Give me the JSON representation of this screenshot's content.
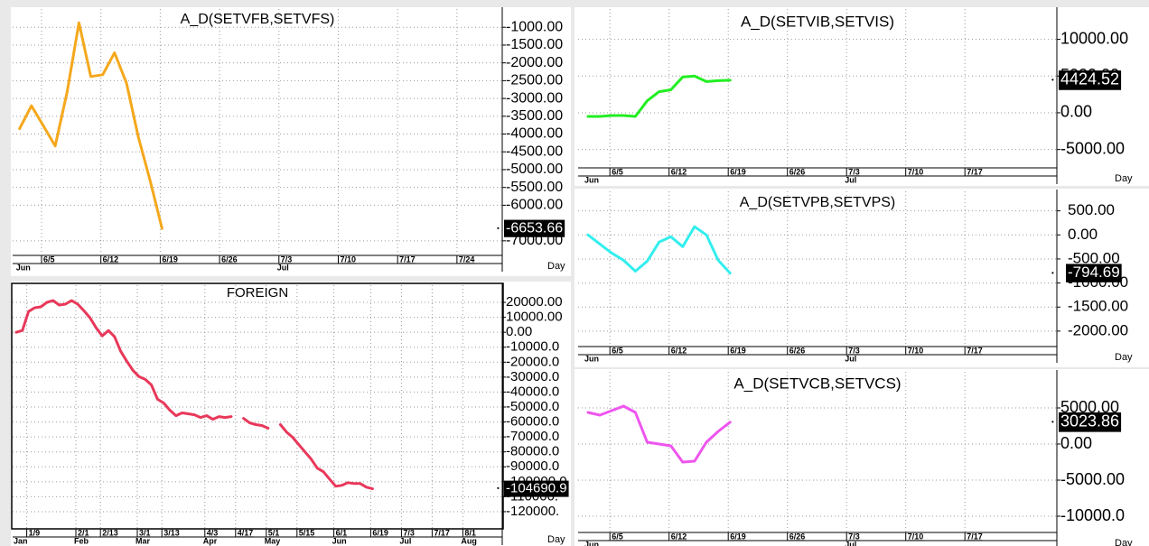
{
  "chart_data": [
    {
      "type": "line",
      "title": "A_D(SETVFB,SETVFS)",
      "x_label": "Day",
      "color": "#f5a81c",
      "grid": true,
      "categories": [
        null,
        null,
        "6/5",
        null,
        null,
        null,
        null,
        "6/12",
        null,
        null,
        null,
        null,
        "6/19",
        null,
        null,
        null,
        null,
        "6/26",
        null,
        null,
        null,
        null,
        "7/3",
        null,
        null,
        null,
        null,
        "7/10",
        null,
        null,
        null,
        null,
        "7/17",
        null,
        null,
        null,
        null,
        "7/24",
        null,
        null,
        null
      ],
      "months": [
        "Jun",
        null,
        null,
        null,
        null,
        null,
        null,
        null,
        null,
        null,
        null,
        null,
        null,
        null,
        null,
        null,
        null,
        null,
        null,
        null,
        null,
        null,
        "Jul",
        null,
        null,
        null,
        null,
        null,
        null,
        null,
        null,
        null,
        null,
        null,
        null,
        null,
        null,
        null,
        null,
        null,
        null
      ],
      "values": [
        -3846,
        -3205,
        -3769,
        -4333,
        -2820,
        -872,
        -2385,
        -2333,
        -1718,
        -2564,
        -4077,
        -5308,
        -6653.66,
        null,
        null,
        null,
        null,
        null,
        null,
        null,
        null,
        null,
        null,
        null,
        null,
        null,
        null,
        null,
        null,
        null,
        null,
        null,
        null,
        null,
        null,
        null,
        null,
        null,
        null,
        null,
        null
      ],
      "value_labels": [
        null,
        null,
        null,
        null,
        null,
        null,
        null,
        null,
        null,
        null,
        null,
        null,
        "-6653.66",
        null,
        null,
        null,
        null,
        null,
        null,
        null,
        null,
        null,
        null,
        null,
        null,
        null,
        null,
        null,
        null,
        null,
        null,
        null,
        null,
        null,
        null,
        null,
        null,
        null,
        null,
        null,
        null
      ],
      "ylim": [
        -7410,
        -487
      ],
      "yticks": [
        {
          "value": -1000,
          "label": "-1000.00"
        },
        {
          "value": -1500,
          "label": "-1500.00"
        },
        {
          "value": -2000,
          "label": "-2000.00"
        },
        {
          "value": -2500,
          "label": "-2500.00"
        },
        {
          "value": -3000,
          "label": "-3000.00"
        },
        {
          "value": -3500,
          "label": "-3500.00"
        },
        {
          "value": -4000,
          "label": "-4000.00"
        },
        {
          "value": -4500,
          "label": "-4500.00"
        },
        {
          "value": -5000,
          "label": "-5000.00"
        },
        {
          "value": -5500,
          "label": "-5500.00"
        },
        {
          "value": -6000,
          "label": "-6000.00"
        },
        {
          "value": -7000,
          "label": "-7000.00"
        }
      ]
    },
    {
      "type": "line",
      "title": "FOREIGN",
      "x_label": "Day",
      "color": "#e8385a",
      "grid": true,
      "categories": [
        null,
        null,
        "1/9",
        null,
        null,
        null,
        null,
        null,
        null,
        null,
        "2/1",
        null,
        null,
        null,
        "2/13",
        null,
        null,
        null,
        null,
        null,
        "3/1",
        null,
        null,
        null,
        "3/13",
        null,
        null,
        null,
        null,
        null,
        null,
        "4/3",
        null,
        null,
        null,
        null,
        "4/17",
        null,
        null,
        null,
        null,
        "5/1",
        null,
        null,
        null,
        null,
        "5/15",
        null,
        null,
        null,
        null,
        null,
        "6/1",
        null,
        null,
        null,
        null,
        null,
        "6/19",
        null,
        null,
        null,
        null,
        "7/3",
        null,
        null,
        null,
        null,
        "7/17",
        null,
        null,
        null,
        null,
        "8/1",
        null,
        null,
        null,
        null,
        null,
        null
      ],
      "months": [
        "Jan",
        null,
        null,
        null,
        null,
        null,
        null,
        null,
        null,
        null,
        "Feb",
        null,
        null,
        null,
        null,
        null,
        null,
        null,
        null,
        null,
        "Mar",
        null,
        null,
        null,
        null,
        null,
        null,
        null,
        null,
        null,
        null,
        "Apr",
        null,
        null,
        null,
        null,
        null,
        null,
        null,
        null,
        null,
        "May",
        null,
        null,
        null,
        null,
        null,
        null,
        null,
        null,
        null,
        null,
        "Jun",
        null,
        null,
        null,
        null,
        null,
        null,
        null,
        null,
        null,
        null,
        "Jul",
        null,
        null,
        null,
        null,
        null,
        null,
        null,
        null,
        null,
        "Aug",
        null,
        null,
        null,
        null,
        null,
        null
      ],
      "values": [
        0,
        1200,
        13900,
        16400,
        17000,
        20000,
        21200,
        18200,
        18800,
        21200,
        18800,
        14500,
        9700,
        3000,
        -2400,
        1200,
        -3000,
        -12700,
        -19400,
        -25500,
        -29700,
        -31500,
        -35200,
        -44800,
        -47300,
        -52100,
        -55800,
        -53900,
        -54500,
        -55200,
        -57000,
        -55800,
        -58200,
        -56400,
        -57000,
        -56400,
        null,
        -57600,
        -60600,
        -61800,
        -62400,
        -64200,
        null,
        -61800,
        -66700,
        -70300,
        -75200,
        -80000,
        -84800,
        -90900,
        -93300,
        -98200,
        -103000,
        -102400,
        -100600,
        -101200,
        -101200,
        -103600,
        -104690.9,
        null,
        null,
        null,
        null,
        null,
        null,
        null,
        null,
        null,
        null,
        null,
        null,
        null,
        null,
        null,
        null,
        null,
        null,
        null,
        null,
        null
      ],
      "value_labels": [
        null,
        null,
        null,
        null,
        null,
        null,
        null,
        null,
        null,
        null,
        null,
        null,
        null,
        null,
        null,
        null,
        null,
        null,
        null,
        null,
        null,
        null,
        null,
        null,
        null,
        null,
        null,
        null,
        null,
        null,
        null,
        null,
        null,
        null,
        null,
        null,
        null,
        null,
        null,
        null,
        null,
        null,
        null,
        null,
        null,
        null,
        null,
        null,
        null,
        null,
        null,
        null,
        null,
        null,
        null,
        null,
        null,
        null,
        "-104690.9",
        null,
        null,
        null,
        null,
        null,
        null,
        null,
        null,
        null,
        null,
        null,
        null,
        null,
        null,
        null,
        null,
        null,
        null,
        null,
        null,
        null
      ],
      "ylim": [
        -131500,
        31500
      ],
      "yticks": [
        {
          "value": 20000,
          "label": "20000.00"
        },
        {
          "value": 10000,
          "label": "10000.00"
        },
        {
          "value": 0,
          "label": "0.00"
        },
        {
          "value": -10000,
          "label": "-10000.0"
        },
        {
          "value": -20000,
          "label": "-20000.0"
        },
        {
          "value": -30000,
          "label": "-30000.0"
        },
        {
          "value": -40000,
          "label": "-40000.0"
        },
        {
          "value": -50000,
          "label": "-50000.0"
        },
        {
          "value": -60000,
          "label": "-60000.0"
        },
        {
          "value": -70000,
          "label": "-70000.0"
        },
        {
          "value": -80000,
          "label": "-80000.0"
        },
        {
          "value": -90000,
          "label": "-90000.0"
        },
        {
          "value": -100000,
          "label": "-100000.0"
        },
        {
          "value": -110000,
          "label": "-110000."
        },
        {
          "value": -120000,
          "label": "-120000."
        }
      ]
    },
    {
      "type": "line",
      "title": "A_D(SETVIB,SETVIS)",
      "x_label": "Day",
      "color": "#22ee22",
      "grid": true,
      "categories": [
        null,
        null,
        "6/5",
        null,
        null,
        null,
        null,
        "6/12",
        null,
        null,
        null,
        null,
        "6/19",
        null,
        null,
        null,
        null,
        "6/26",
        null,
        null,
        null,
        null,
        "7/3",
        null,
        null,
        null,
        null,
        "7/10",
        null,
        null,
        null,
        null,
        "7/17",
        null,
        null,
        null,
        null,
        null,
        null,
        null
      ],
      "months": [
        "Jun",
        null,
        null,
        null,
        null,
        null,
        null,
        null,
        null,
        null,
        null,
        null,
        null,
        null,
        null,
        null,
        null,
        null,
        null,
        null,
        null,
        null,
        "Jul",
        null,
        null,
        null,
        null,
        null,
        null,
        null,
        null,
        null,
        null,
        null,
        null,
        null,
        null,
        null,
        null,
        null
      ],
      "values": [
        -500,
        -500,
        -375,
        -375,
        -500,
        1625,
        2875,
        3125,
        4875,
        5000,
        4250,
        4375,
        4424.52,
        null,
        null,
        null,
        null,
        null,
        null,
        null,
        null,
        null,
        null,
        null,
        null,
        null,
        null,
        null,
        null,
        null,
        null,
        null,
        null,
        null,
        null,
        null,
        null,
        null,
        null,
        null
      ],
      "value_labels": [
        null,
        null,
        null,
        null,
        null,
        null,
        null,
        null,
        null,
        null,
        null,
        null,
        "4424.52",
        null,
        null,
        null,
        null,
        null,
        null,
        null,
        null,
        null,
        null,
        null,
        null,
        null,
        null,
        null,
        null,
        null,
        null,
        null,
        null,
        null,
        null,
        null,
        null,
        null,
        null,
        null
      ],
      "ylim": [
        -7500,
        14125
      ],
      "yticks": [
        {
          "value": 10000,
          "label": "10000.00"
        },
        {
          "value": 5000,
          "label": "5000.00"
        },
        {
          "value": 0,
          "label": "0.00"
        },
        {
          "value": -5000,
          "label": "-5000.00"
        }
      ]
    },
    {
      "type": "line",
      "title": "A_D(SETVPB,SETVPS)",
      "x_label": "Day",
      "color": "#33eeee",
      "grid": true,
      "categories": [
        null,
        null,
        "6/5",
        null,
        null,
        null,
        null,
        "6/12",
        null,
        null,
        null,
        null,
        "6/19",
        null,
        null,
        null,
        null,
        "6/26",
        null,
        null,
        null,
        null,
        "7/3",
        null,
        null,
        null,
        null,
        "7/10",
        null,
        null,
        null,
        null,
        "7/17",
        null,
        null,
        null,
        null,
        null,
        null,
        null
      ],
      "months": [
        "Jun",
        null,
        null,
        null,
        null,
        null,
        null,
        null,
        null,
        null,
        null,
        null,
        null,
        null,
        null,
        null,
        null,
        null,
        null,
        null,
        null,
        null,
        "Jul",
        null,
        null,
        null,
        null,
        null,
        null,
        null,
        null,
        null,
        null,
        null,
        null,
        null,
        null,
        null,
        null,
        null
      ],
      "values": [
        0,
        -189,
        -377,
        -528,
        -755,
        -547,
        -151,
        -38,
        -245,
        170,
        0,
        -528,
        -794.69,
        null,
        null,
        null,
        null,
        null,
        null,
        null,
        null,
        null,
        null,
        null,
        null,
        null,
        null,
        null,
        null,
        null,
        null,
        null,
        null,
        null,
        null,
        null,
        null,
        null,
        null,
        null
      ],
      "value_labels": [
        null,
        null,
        null,
        null,
        null,
        null,
        null,
        null,
        null,
        null,
        null,
        null,
        "-794.69",
        null,
        null,
        null,
        null,
        null,
        null,
        null,
        null,
        null,
        null,
        null,
        null,
        null,
        null,
        null,
        null,
        null,
        null,
        null,
        null,
        null,
        null,
        null,
        null,
        null,
        null,
        null
      ],
      "ylim": [
        -2321,
        906
      ],
      "yticks": [
        {
          "value": 500,
          "label": "500.00"
        },
        {
          "value": 0,
          "label": "0.00"
        },
        {
          "value": -500,
          "label": "-500.00"
        },
        {
          "value": -1000,
          "label": "-1000.00"
        },
        {
          "value": -1500,
          "label": "-1500.00"
        },
        {
          "value": -2000,
          "label": "-2000.00"
        }
      ]
    },
    {
      "type": "line",
      "title": "A_D(SETVCB,SETVCS)",
      "x_label": "Day",
      "color": "#ee55ee",
      "grid": true,
      "categories": [
        null,
        null,
        "6/5",
        null,
        null,
        null,
        null,
        "6/12",
        null,
        null,
        null,
        null,
        "6/19",
        null,
        null,
        null,
        null,
        "6/26",
        null,
        null,
        null,
        null,
        "7/3",
        null,
        null,
        null,
        null,
        "7/10",
        null,
        null,
        null,
        null,
        "7/17",
        null,
        null,
        null,
        null,
        null,
        null,
        null
      ],
      "months": [
        "Jun",
        null,
        null,
        null,
        null,
        null,
        null,
        null,
        null,
        null,
        null,
        null,
        null,
        null,
        null,
        null,
        null,
        null,
        null,
        null,
        null,
        null,
        "Jul",
        null,
        null,
        null,
        null,
        null,
        null,
        null,
        null,
        null,
        null,
        null,
        null,
        null,
        null,
        null,
        null,
        null
      ],
      "values": [
        4375,
        4000,
        4625,
        5250,
        4375,
        250,
        0,
        -250,
        -2500,
        -2375,
        250,
        1750,
        3023.86,
        null,
        null,
        null,
        null,
        null,
        null,
        null,
        null,
        null,
        null,
        null,
        null,
        null,
        null,
        null,
        null,
        null,
        null,
        null,
        null,
        null,
        null,
        null,
        null,
        null,
        null,
        null
      ],
      "value_labels": [
        null,
        null,
        null,
        null,
        null,
        null,
        null,
        null,
        null,
        null,
        null,
        null,
        "3023.86",
        null,
        null,
        null,
        null,
        null,
        null,
        null,
        null,
        null,
        null,
        null,
        null,
        null,
        null,
        null,
        null,
        null,
        null,
        null,
        null,
        null,
        null,
        null,
        null,
        null,
        null,
        null
      ],
      "ylim": [
        -12250,
        10000
      ],
      "yticks": [
        {
          "value": 5000,
          "label": "5000.00"
        },
        {
          "value": 0,
          "label": "0.00"
        },
        {
          "value": -5000,
          "label": "-5000.00"
        },
        {
          "value": -10000,
          "label": "-10000.0"
        }
      ]
    }
  ]
}
